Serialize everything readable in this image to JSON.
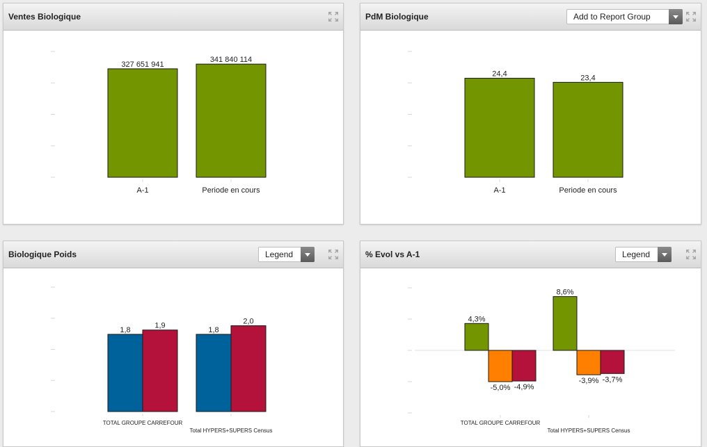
{
  "colors": {
    "green": "#739600",
    "blue": "#00629b",
    "red": "#b5123b",
    "orange": "#ff7f00"
  },
  "panels": [
    {
      "title": "Ventes Biologique",
      "dropdown": null,
      "chart_data": {
        "type": "bar",
        "categories": [
          "A-1",
          "Periode en cours"
        ],
        "series": [
          {
            "values": [
              327651941,
              341840114
            ],
            "labels": [
              "327 651 941",
              "341 840 114"
            ]
          }
        ],
        "ylim": [
          0,
          380000000
        ],
        "colors": [
          "#739600"
        ]
      }
    },
    {
      "title": "PdM Biologique",
      "dropdown": "Add to Report Group",
      "chart_data": {
        "type": "bar",
        "categories": [
          "A-1",
          "Periode en cours"
        ],
        "series": [
          {
            "values": [
              24.4,
              23.4
            ],
            "labels": [
              "24,4",
              "23,4"
            ]
          }
        ],
        "ylim": [
          0,
          31
        ],
        "colors": [
          "#739600"
        ]
      }
    },
    {
      "title": "Biologique Poids",
      "dropdown": "Legend",
      "chart_data": {
        "type": "bar",
        "categories": [
          "TOTAL GROUPE CARREFOUR",
          "Total HYPERS+SUPERS Census"
        ],
        "series": [
          {
            "values": [
              1.8,
              1.8
            ],
            "labels": [
              "1,8",
              "1,8"
            ]
          },
          {
            "values": [
              1.9,
              2.0
            ],
            "labels": [
              "1,9",
              "2,0"
            ]
          }
        ],
        "ylim": [
          0,
          2.9
        ],
        "colors": [
          "#00629b",
          "#b5123b"
        ]
      }
    },
    {
      "title": "% Evol vs A-1",
      "dropdown": "Legend",
      "chart_data": {
        "type": "bar",
        "categories": [
          "TOTAL GROUPE CARREFOUR",
          "Total HYPERS+SUPERS Census"
        ],
        "series": [
          {
            "values": [
              4.3,
              8.6
            ],
            "labels": [
              "4,3%",
              "8,6%"
            ]
          },
          {
            "values": [
              -5.0,
              -3.9
            ],
            "labels": [
              "-5,0%",
              "-3,9%"
            ]
          },
          {
            "values": [
              -4.9,
              -3.7
            ],
            "labels": [
              "-4,9%",
              "-3,7%"
            ]
          }
        ],
        "ylim": [
          -10,
          10
        ],
        "colors": [
          "#739600",
          "#ff7f00",
          "#b5123b"
        ]
      }
    }
  ]
}
